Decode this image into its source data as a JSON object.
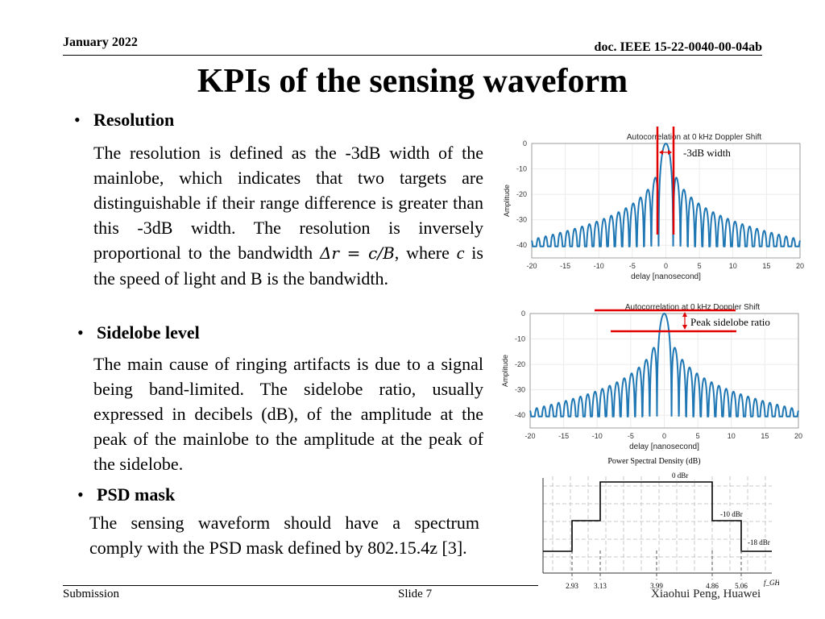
{
  "header": {
    "date": "January 2022",
    "doc": "doc. IEEE 15-22-0040-00-04ab"
  },
  "title": "KPIs of the sensing waveform",
  "sections": {
    "resolution": {
      "heading": "Resolution",
      "para_start": "The resolution is defined as the -3dB width of the mainlobe, which indicates that two targets are distinguishable if their range difference is greater than this -3dB width. The resolution is inversely proportional to the bandwidth ",
      "math": "Δr = c/B",
      "para_mid": ", where ",
      "var_c": "c",
      "para_end": " is the speed of light and B is the bandwidth."
    },
    "sidelobe": {
      "heading": "Sidelobe level",
      "paragraph": "The main cause of ringing artifacts is due to a signal being band-limited. The sidelobe ratio, usually expressed in decibels (dB), of the amplitude at the peak of the mainlobe to the amplitude at the peak of the sidelobe."
    },
    "psd": {
      "heading": "PSD mask",
      "paragraph": "The sensing waveform should have a spectrum comply with the PSD mask defined by 802.15.4z [3]."
    }
  },
  "chart_data": [
    {
      "type": "line",
      "title": "Autocorrelation at 0 kHz Doppler Shift",
      "xlabel": "delay [nanosecond]",
      "ylabel": "Amplitude",
      "xlim": [
        -20,
        20
      ],
      "ylim": [
        -45,
        0
      ],
      "xticks": [
        "-20",
        "-15",
        "-10",
        "-5",
        "0",
        "5",
        "10",
        "15",
        "20"
      ],
      "yticks": [
        "0",
        "-10",
        "-20",
        "-30",
        "-40"
      ],
      "series_color": "#1f77b4",
      "annotation": "-3dB width",
      "annotation_color": "#e00000"
    },
    {
      "type": "line",
      "title": "Autocorrelation at 0 kHz Doppler Shift",
      "xlabel": "delay [nanosecond]",
      "ylabel": "Amplitude",
      "xlim": [
        -20,
        20
      ],
      "ylim": [
        -45,
        0
      ],
      "xticks": [
        "-20",
        "-15",
        "-10",
        "-5",
        "0",
        "5",
        "10",
        "15",
        "20"
      ],
      "yticks": [
        "0",
        "-10",
        "-20",
        "-30",
        "-40"
      ],
      "series_color": "#1f77b4",
      "annotation": "Peak sidelobe ratio",
      "annotation_color": "#e00000"
    },
    {
      "type": "line",
      "title": "Power Spectral Density (dB)",
      "xlabel": "f_GHz",
      "x_points": [
        2.93,
        3.13,
        3.99,
        4.86,
        5.06
      ],
      "x_labels": [
        "2.93",
        "3.13",
        "3.99",
        "4.86",
        "5.06"
      ],
      "levels": [
        {
          "label": "0 dBr",
          "value": 0
        },
        {
          "label": "-10 dBr",
          "value": -10
        },
        {
          "label": "-18 dBr",
          "value": -18
        }
      ],
      "mask_dbr": [
        -18,
        -10,
        0,
        0,
        -10,
        -18
      ]
    }
  ],
  "footer": {
    "left": "Submission",
    "middle": "Slide 7",
    "right": "Xiaohui Peng, Huawei"
  }
}
